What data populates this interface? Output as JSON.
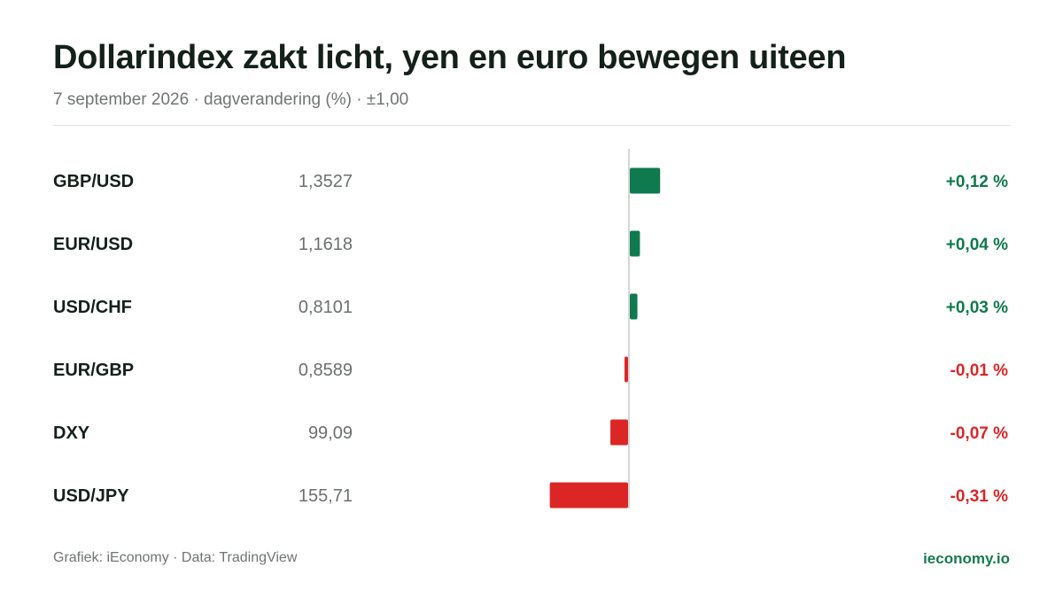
{
  "header": {
    "title": "Dollarindex zakt licht, yen en euro bewegen uiteen",
    "subtitle": "7 september 2026 · dagverandering (%) · ±1,00"
  },
  "footer": {
    "source": "Grafiek: iEconomy · Data: TradingView",
    "brand": "ieconomy.io"
  },
  "colors": {
    "positive": "#0e7a4d",
    "negative": "#dc2626",
    "axis": "#d4d7d5"
  },
  "chart_data": {
    "type": "bar",
    "orientation": "horizontal",
    "categories": [
      "GBP/USD",
      "EUR/USD",
      "USD/CHF",
      "EUR/GBP",
      "DXY",
      "USD/JPY"
    ],
    "rates": [
      "1,3527",
      "1,1618",
      "0,8101",
      "0,8589",
      "99,09",
      "155,71"
    ],
    "values": [
      0.12,
      0.04,
      0.03,
      -0.01,
      -0.07,
      -0.31
    ],
    "value_labels": [
      "+0,12 %",
      "+0,04 %",
      "+0,03 %",
      "-0,01 %",
      "-0,07 %",
      "-0,31 %"
    ],
    "xlim": [
      -1.0,
      1.0
    ],
    "grid": false
  }
}
